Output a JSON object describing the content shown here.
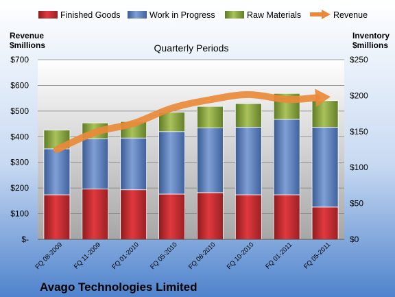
{
  "chart_data": {
    "type": "bar",
    "subtype": "stacked-with-line",
    "title": "Quarterly Periods",
    "footer": "Avago Technologies Limited",
    "left_axis_title": [
      "Revenue",
      "$millions"
    ],
    "right_axis_title": [
      "Inventory",
      "$millions"
    ],
    "left_ylim": [
      0,
      700
    ],
    "left_ticks": [
      "$-",
      "$100",
      "$200",
      "$300",
      "$400",
      "$500",
      "$600",
      "$700"
    ],
    "right_ylim": [
      0,
      250
    ],
    "right_ticks": [
      "$0",
      "$50",
      "$100",
      "$150",
      "$200",
      "$250"
    ],
    "grid": true,
    "legend_position": "top",
    "categories": [
      "FQ 08-2009",
      "FQ 11-2009",
      "FQ 01-2010",
      "FQ 05-2010",
      "FQ 08-2010",
      "FQ 10-2010",
      "FQ 01-2011",
      "FQ 05-2011"
    ],
    "series": [
      {
        "name": "Finished Goods",
        "axis": "right",
        "kind": "bar",
        "color": "#c0282d",
        "values": [
          62,
          70,
          69,
          63,
          65,
          62,
          62,
          45
        ]
      },
      {
        "name": "Work in Progress",
        "axis": "right",
        "kind": "bar",
        "color": "#4f74b5",
        "values": [
          64,
          70,
          72,
          87,
          90,
          94,
          105,
          111
        ]
      },
      {
        "name": "Raw Materials",
        "axis": "right",
        "kind": "bar",
        "color": "#7f9a3c",
        "values": [
          26,
          22,
          23,
          27,
          30,
          33,
          36,
          37
        ]
      },
      {
        "name": "Revenue",
        "axis": "left",
        "kind": "line",
        "color": "#e98a3a",
        "values": [
          350,
          417,
          452,
          511,
          544,
          564,
          545,
          554
        ]
      }
    ]
  }
}
